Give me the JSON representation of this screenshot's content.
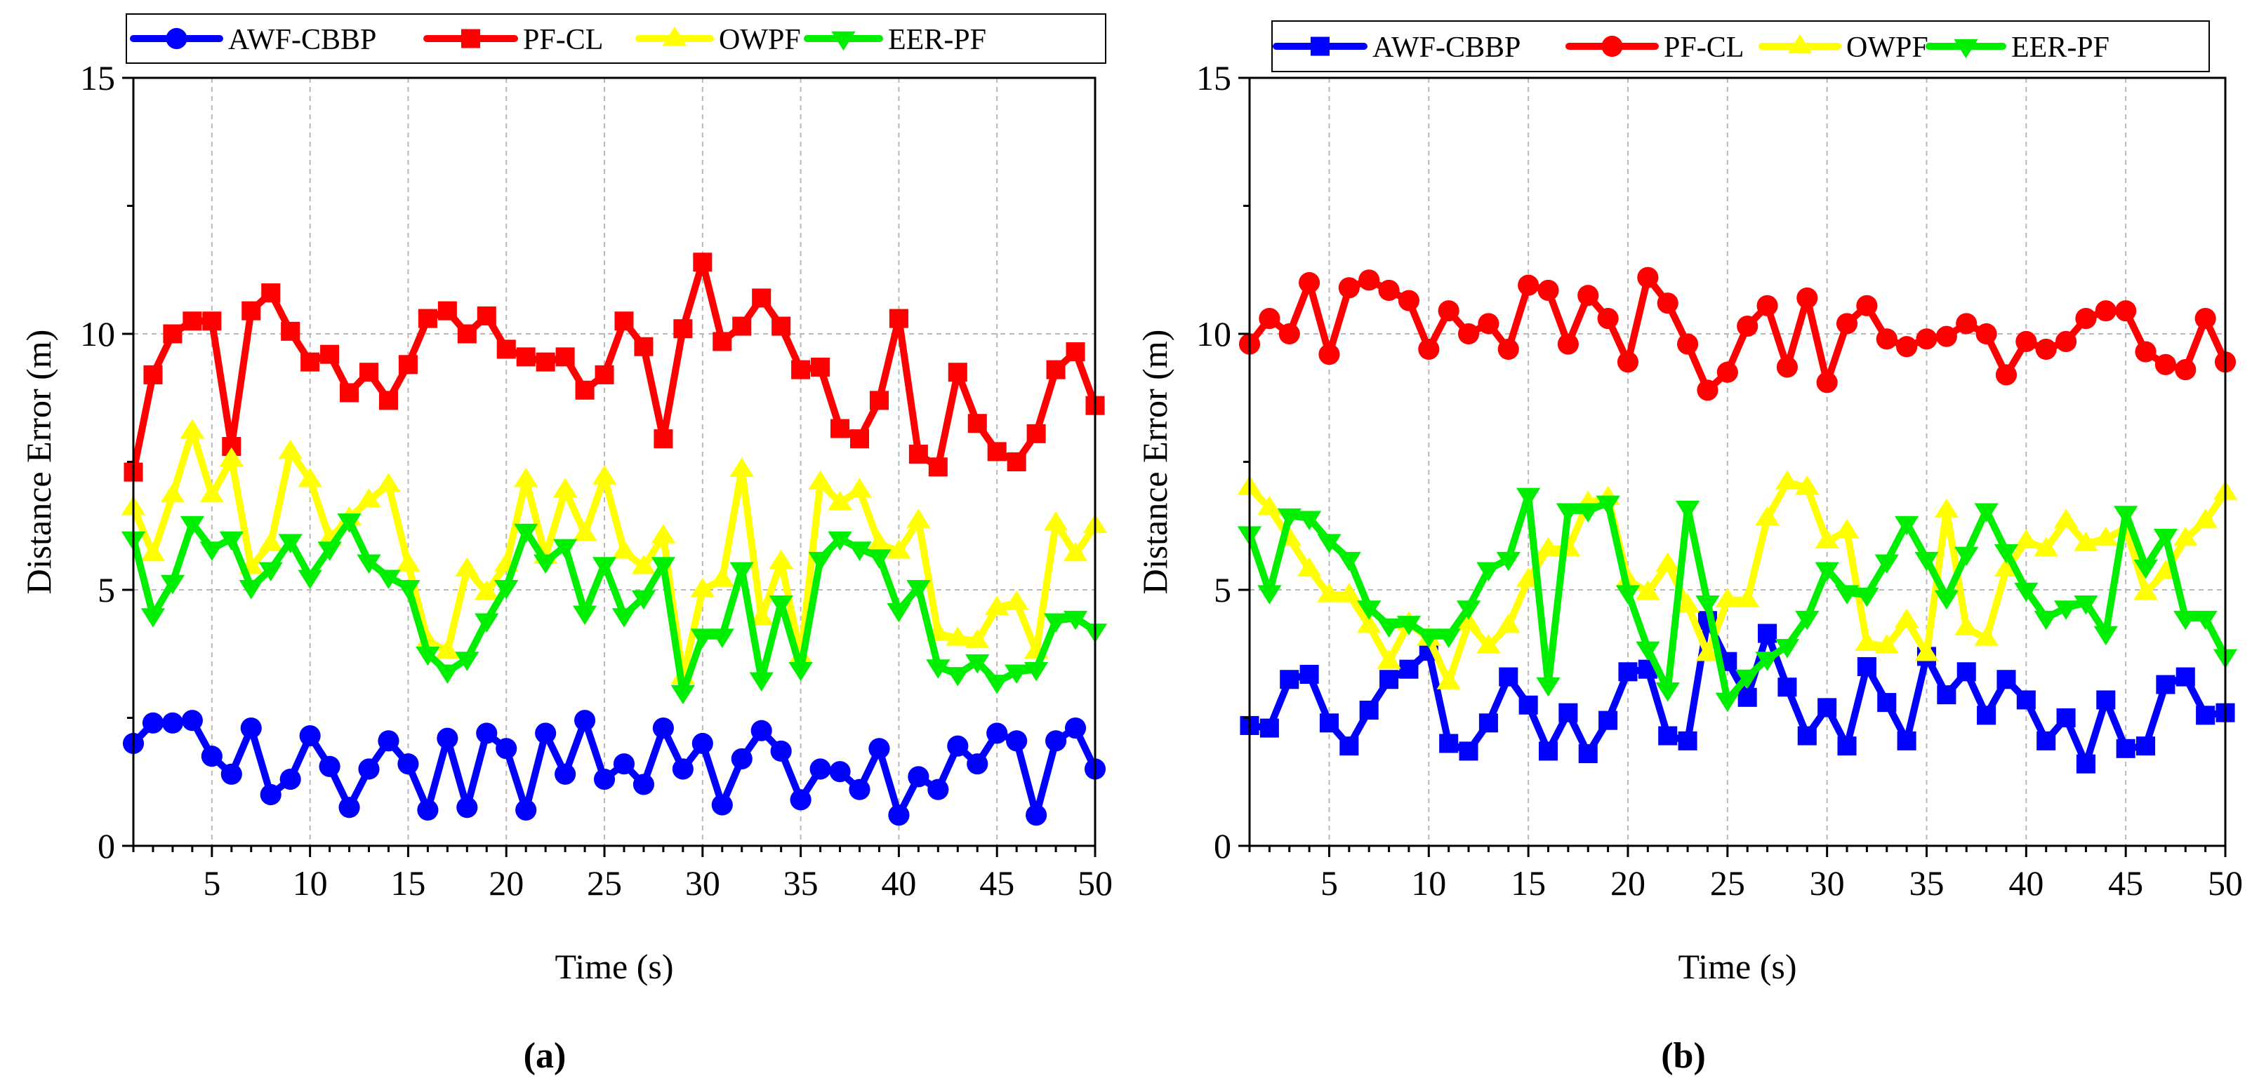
{
  "figure": {
    "panel_labels": [
      "(a)",
      "(b)"
    ]
  },
  "chart_data": [
    {
      "type": "line",
      "panel": "a",
      "label": "(a)",
      "xlabel": "Time (s)",
      "ylabel": "Distance Error (m)",
      "xlim": [
        1,
        50
      ],
      "ylim": [
        0,
        15
      ],
      "xticks": [
        5,
        10,
        15,
        20,
        25,
        30,
        35,
        40,
        45,
        50
      ],
      "yticks": [
        0,
        5,
        10,
        15
      ],
      "grid": true,
      "legend_position": "top",
      "x": [
        1,
        2,
        3,
        4,
        5,
        6,
        7,
        8,
        9,
        10,
        11,
        12,
        13,
        14,
        15,
        16,
        17,
        18,
        19,
        20,
        21,
        22,
        23,
        24,
        25,
        26,
        27,
        28,
        29,
        30,
        31,
        32,
        33,
        34,
        35,
        36,
        37,
        38,
        39,
        40,
        41,
        42,
        43,
        44,
        45,
        46,
        47,
        48,
        49,
        50
      ],
      "series": [
        {
          "name": "AWF-CBBP",
          "color": "#0000FF",
          "marker": "circle",
          "values": [
            2.0,
            2.4,
            2.4,
            2.45,
            1.75,
            1.4,
            2.3,
            1.0,
            1.3,
            2.15,
            1.55,
            0.75,
            1.5,
            2.05,
            1.6,
            0.7,
            2.1,
            0.75,
            2.2,
            1.9,
            0.7,
            2.2,
            1.4,
            2.45,
            1.3,
            1.6,
            1.2,
            2.3,
            1.5,
            2.0,
            0.8,
            1.7,
            2.25,
            1.85,
            0.9,
            1.5,
            1.45,
            1.1,
            1.9,
            0.6,
            1.35,
            1.1,
            1.95,
            1.6,
            2.2,
            2.05,
            0.6,
            2.05,
            2.3,
            1.5
          ]
        },
        {
          "name": "PF-CL",
          "color": "#FF0000",
          "marker": "square",
          "values": [
            7.3,
            9.2,
            10.0,
            10.25,
            10.25,
            7.8,
            10.45,
            10.8,
            10.05,
            9.45,
            9.6,
            8.85,
            9.25,
            8.7,
            9.4,
            10.3,
            10.45,
            10.0,
            10.35,
            9.7,
            9.55,
            9.45,
            9.55,
            8.9,
            9.2,
            10.25,
            9.75,
            7.95,
            10.1,
            11.4,
            9.85,
            10.15,
            10.7,
            10.15,
            9.3,
            9.35,
            8.15,
            7.95,
            8.7,
            10.3,
            7.65,
            7.4,
            9.25,
            8.25,
            7.7,
            7.5,
            8.05,
            9.3,
            9.65,
            8.6
          ]
        },
        {
          "name": "OWPF",
          "color": "#FFFF00",
          "marker": "triangle-up",
          "values": [
            6.6,
            5.7,
            6.85,
            8.1,
            6.85,
            7.55,
            5.45,
            5.9,
            7.7,
            7.15,
            6.0,
            6.4,
            6.75,
            7.05,
            5.5,
            4.0,
            3.8,
            5.4,
            4.95,
            5.5,
            7.15,
            5.65,
            6.95,
            6.1,
            7.2,
            5.75,
            5.45,
            6.05,
            3.3,
            5.0,
            5.2,
            7.35,
            4.45,
            5.55,
            3.7,
            7.1,
            6.7,
            6.95,
            5.9,
            5.75,
            6.35,
            4.15,
            4.05,
            4.0,
            4.65,
            4.75,
            3.8,
            6.3,
            5.7,
            6.25
          ]
        },
        {
          "name": "EER-PF",
          "color": "#00EE00",
          "marker": "triangle-down",
          "values": [
            6.0,
            4.5,
            5.15,
            6.3,
            5.8,
            6.0,
            5.05,
            5.4,
            5.95,
            5.25,
            5.8,
            6.35,
            5.55,
            5.25,
            5.05,
            3.75,
            3.4,
            3.65,
            4.4,
            5.05,
            6.15,
            5.55,
            5.85,
            4.55,
            5.5,
            4.5,
            4.85,
            5.5,
            3.0,
            4.1,
            4.1,
            5.4,
            3.25,
            4.75,
            3.45,
            5.6,
            6.0,
            5.8,
            5.65,
            4.6,
            5.05,
            3.5,
            3.35,
            3.6,
            3.2,
            3.4,
            3.45,
            4.4,
            4.45,
            4.2
          ]
        }
      ]
    },
    {
      "type": "line",
      "panel": "b",
      "label": "(b)",
      "xlabel": "Time (s)",
      "ylabel": "Distance Error (m)",
      "xlim": [
        1,
        50
      ],
      "ylim": [
        0,
        15
      ],
      "xticks": [
        5,
        10,
        15,
        20,
        25,
        30,
        35,
        40,
        45,
        50
      ],
      "yticks": [
        0,
        5,
        10,
        15
      ],
      "grid": true,
      "legend_position": "top",
      "x": [
        1,
        2,
        3,
        4,
        5,
        6,
        7,
        8,
        9,
        10,
        11,
        12,
        13,
        14,
        15,
        16,
        17,
        18,
        19,
        20,
        21,
        22,
        23,
        24,
        25,
        26,
        27,
        28,
        29,
        30,
        31,
        32,
        33,
        34,
        35,
        36,
        37,
        38,
        39,
        40,
        41,
        42,
        43,
        44,
        45,
        46,
        47,
        48,
        49,
        50
      ],
      "series": [
        {
          "name": "AWF-CBBP",
          "color": "#0000FF",
          "marker": "square",
          "values": [
            2.35,
            2.3,
            3.25,
            3.35,
            2.4,
            1.95,
            2.65,
            3.25,
            3.45,
            3.8,
            2.0,
            1.85,
            2.4,
            3.3,
            2.75,
            1.85,
            2.6,
            1.8,
            2.45,
            3.4,
            3.45,
            2.15,
            2.05,
            4.4,
            3.6,
            2.9,
            4.15,
            3.1,
            2.15,
            2.7,
            1.95,
            3.5,
            2.8,
            2.05,
            3.7,
            2.95,
            3.4,
            2.55,
            3.25,
            2.85,
            2.05,
            2.5,
            1.6,
            2.85,
            1.9,
            1.95,
            3.15,
            3.3,
            2.55,
            2.6
          ]
        },
        {
          "name": "PF-CL",
          "color": "#FF0000",
          "marker": "circle",
          "values": [
            9.8,
            10.3,
            10.0,
            11.0,
            9.6,
            10.9,
            11.05,
            10.85,
            10.65,
            9.7,
            10.45,
            10.0,
            10.2,
            9.7,
            10.95,
            10.85,
            9.8,
            10.75,
            10.3,
            9.45,
            11.1,
            10.6,
            9.8,
            8.9,
            9.25,
            10.15,
            10.55,
            9.35,
            10.7,
            9.05,
            10.2,
            10.55,
            9.9,
            9.75,
            9.9,
            9.95,
            10.2,
            10.0,
            9.2,
            9.85,
            9.7,
            9.85,
            10.3,
            10.45,
            10.45,
            9.65,
            9.4,
            9.3,
            10.3,
            9.45
          ]
        },
        {
          "name": "OWPF",
          "color": "#FFFF00",
          "marker": "triangle-up",
          "values": [
            7.0,
            6.6,
            6.0,
            5.4,
            4.9,
            4.9,
            4.3,
            3.6,
            4.35,
            4.05,
            3.2,
            4.35,
            3.9,
            4.3,
            5.2,
            5.8,
            5.8,
            6.7,
            6.8,
            5.2,
            4.95,
            5.5,
            4.7,
            3.75,
            4.8,
            4.8,
            6.4,
            7.1,
            7.0,
            5.95,
            6.15,
            3.95,
            3.9,
            4.4,
            3.75,
            6.55,
            4.25,
            4.05,
            5.4,
            5.95,
            5.8,
            6.35,
            5.9,
            6.0,
            6.2,
            4.95,
            5.35,
            6.0,
            6.35,
            6.9
          ]
        },
        {
          "name": "EER-PF",
          "color": "#00EE00",
          "marker": "triangle-down",
          "values": [
            6.1,
            4.95,
            6.45,
            6.4,
            5.95,
            5.6,
            4.65,
            4.3,
            4.35,
            4.1,
            4.1,
            4.65,
            5.4,
            5.6,
            6.85,
            3.15,
            6.55,
            6.55,
            6.7,
            4.95,
            3.85,
            3.05,
            6.6,
            4.75,
            2.85,
            3.3,
            3.65,
            3.9,
            4.45,
            5.4,
            4.95,
            4.9,
            5.55,
            6.3,
            5.6,
            4.85,
            5.7,
            6.55,
            5.75,
            5.0,
            4.45,
            4.65,
            4.75,
            4.15,
            6.5,
            5.45,
            6.05,
            4.45,
            4.45,
            3.7
          ]
        }
      ]
    }
  ]
}
